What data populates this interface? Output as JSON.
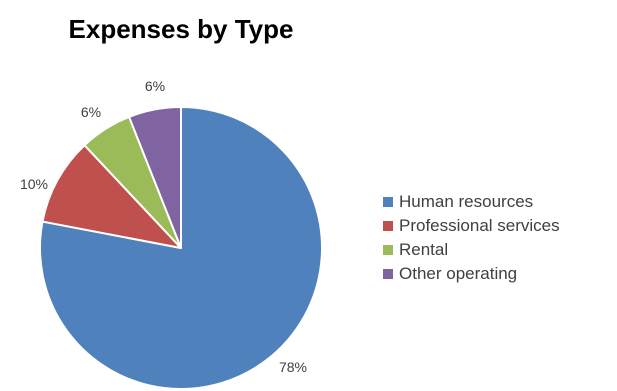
{
  "chart_data": {
    "type": "pie",
    "title": "Expenses by Type",
    "categories": [
      "Human resources",
      "Professional services",
      "Rental",
      "Other operating"
    ],
    "values": [
      78,
      10,
      6,
      6
    ],
    "labels": [
      "78%",
      "10%",
      "6%",
      "6%"
    ],
    "colors": [
      "#4F81BD",
      "#C0504D",
      "#9BBB59",
      "#8064A2"
    ],
    "legend_position": "right"
  }
}
